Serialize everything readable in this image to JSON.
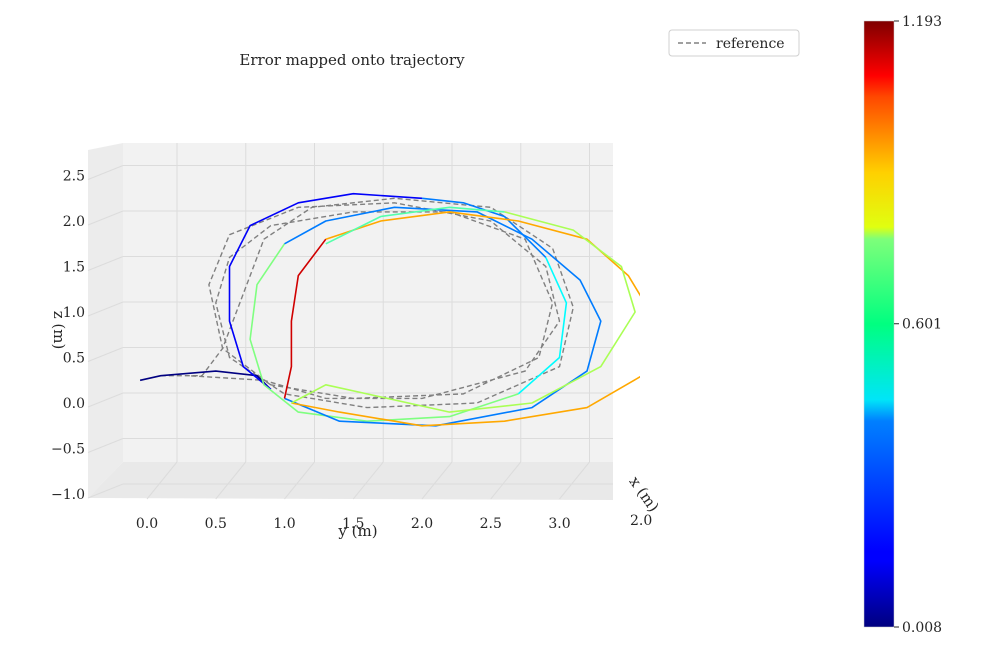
{
  "chart_data": {
    "type": "line",
    "projection": "3d",
    "title": "Error mapped onto trajectory",
    "xlabel": "y (m)",
    "ylabel": "z (m)",
    "depth_label": "x (m)",
    "x_ticks": [
      "0.0",
      "0.5",
      "1.0",
      "1.5",
      "2.0",
      "2.5",
      "3.0"
    ],
    "y_ticks": [
      "−1.0",
      "−0.5",
      "0.0",
      "0.5",
      "1.0",
      "1.5",
      "2.0",
      "2.5"
    ],
    "depth_ticks": [
      "2.0"
    ],
    "grid": true,
    "legend": {
      "position": "top-right",
      "entries": [
        {
          "label": "reference",
          "style": "dashed",
          "color": "#808080"
        }
      ]
    },
    "colorbar": {
      "min": 0.008,
      "max": 1.193,
      "ticks": [
        "1.193",
        "0.601",
        "0.008"
      ],
      "colormap": "jet"
    },
    "series": [
      {
        "role": "reference",
        "color": "#808080",
        "loops": [
          [
            [
              0.1,
              0.3
            ],
            [
              0.4,
              0.3
            ],
            [
              0.55,
              0.6
            ],
            [
              0.7,
              1.2
            ],
            [
              0.85,
              1.8
            ],
            [
              1.2,
              2.15
            ],
            [
              1.8,
              2.25
            ],
            [
              2.5,
              2.15
            ],
            [
              2.95,
              1.7
            ],
            [
              3.1,
              1.05
            ],
            [
              3.0,
              0.4
            ],
            [
              2.4,
              0.0
            ],
            [
              1.6,
              -0.05
            ],
            [
              1.0,
              0.1
            ],
            [
              0.6,
              0.5
            ],
            [
              0.5,
              1.1
            ],
            [
              0.6,
              1.6
            ],
            [
              0.9,
              1.95
            ],
            [
              1.5,
              2.1
            ],
            [
              2.2,
              2.1
            ],
            [
              2.75,
              1.8
            ],
            [
              2.95,
              1.1
            ],
            [
              2.85,
              0.5
            ],
            [
              2.3,
              0.1
            ],
            [
              1.5,
              0.05
            ],
            [
              0.9,
              0.2
            ],
            [
              0.55,
              0.6
            ],
            [
              0.45,
              1.3
            ],
            [
              0.6,
              1.85
            ],
            [
              1.1,
              2.15
            ],
            [
              1.8,
              2.2
            ],
            [
              2.5,
              2.0
            ],
            [
              2.9,
              1.5
            ],
            [
              3.0,
              0.9
            ],
            [
              2.75,
              0.35
            ],
            [
              2.0,
              0.05
            ],
            [
              1.3,
              0.05
            ],
            [
              0.85,
              0.25
            ],
            [
              0.3,
              0.3
            ]
          ]
        ]
      },
      {
        "role": "estimate",
        "color_by": "error",
        "segments": [
          {
            "error": 0.01,
            "points": [
              [
                -0.05,
                0.25
              ],
              [
                0.1,
                0.3
              ],
              [
                0.5,
                0.35
              ],
              [
                0.8,
                0.3
              ],
              [
                0.9,
                0.15
              ]
            ]
          },
          {
            "error": 0.15,
            "points": [
              [
                0.9,
                0.15
              ],
              [
                0.7,
                0.4
              ],
              [
                0.6,
                0.9
              ],
              [
                0.6,
                1.5
              ],
              [
                0.75,
                1.95
              ],
              [
                1.1,
                2.2
              ],
              [
                1.5,
                2.3
              ],
              [
                2.0,
                2.25
              ]
            ]
          },
          {
            "error": 0.3,
            "points": [
              [
                2.0,
                2.25
              ],
              [
                2.3,
                2.2
              ],
              [
                2.6,
                2.05
              ],
              [
                2.9,
                1.6
              ]
            ]
          },
          {
            "error": 0.45,
            "points": [
              [
                2.9,
                1.6
              ],
              [
                3.05,
                1.1
              ],
              [
                3.0,
                0.5
              ],
              [
                2.7,
                0.1
              ]
            ]
          },
          {
            "error": 0.6,
            "points": [
              [
                2.7,
                0.1
              ],
              [
                2.2,
                -0.15
              ],
              [
                1.6,
                -0.2
              ],
              [
                1.1,
                -0.1
              ],
              [
                0.85,
                0.2
              ],
              [
                0.75,
                0.7
              ],
              [
                0.8,
                1.3
              ],
              [
                1.0,
                1.75
              ]
            ]
          },
          {
            "error": 0.3,
            "points": [
              [
                1.0,
                1.75
              ],
              [
                1.3,
                2.0
              ],
              [
                1.8,
                2.15
              ],
              [
                2.4,
                2.1
              ],
              [
                2.8,
                1.8
              ],
              [
                3.15,
                1.35
              ],
              [
                3.3,
                0.9
              ],
              [
                3.2,
                0.35
              ],
              [
                2.8,
                -0.05
              ],
              [
                2.1,
                -0.25
              ],
              [
                1.4,
                -0.2
              ],
              [
                1.0,
                0.05
              ]
            ]
          },
          {
            "error": 1.1,
            "points": [
              [
                1.0,
                0.05
              ],
              [
                1.05,
                0.4
              ],
              [
                1.05,
                0.9
              ],
              [
                1.1,
                1.4
              ],
              [
                1.3,
                1.8
              ]
            ]
          },
          {
            "error": 0.85,
            "points": [
              [
                1.3,
                1.8
              ],
              [
                1.7,
                2.0
              ],
              [
                2.2,
                2.1
              ],
              [
                2.7,
                2.0
              ],
              [
                3.2,
                1.8
              ],
              [
                3.5,
                1.4
              ],
              [
                3.7,
                0.9
              ],
              [
                3.6,
                0.3
              ],
              [
                3.2,
                -0.05
              ],
              [
                2.6,
                -0.2
              ],
              [
                2.0,
                -0.25
              ],
              [
                1.4,
                -0.1
              ],
              [
                1.05,
                0.0
              ]
            ]
          },
          {
            "error": 0.65,
            "points": [
              [
                1.05,
                0.0
              ],
              [
                1.3,
                0.2
              ],
              [
                1.6,
                0.1
              ],
              [
                2.2,
                -0.1
              ],
              [
                2.8,
                0.0
              ],
              [
                3.3,
                0.4
              ],
              [
                3.55,
                1.0
              ],
              [
                3.45,
                1.5
              ],
              [
                3.1,
                1.9
              ],
              [
                2.6,
                2.1
              ]
            ]
          },
          {
            "error": 0.55,
            "points": [
              [
                2.6,
                2.1
              ],
              [
                2.2,
                2.15
              ],
              [
                1.7,
                2.05
              ],
              [
                1.3,
                1.75
              ]
            ]
          }
        ]
      }
    ]
  }
}
